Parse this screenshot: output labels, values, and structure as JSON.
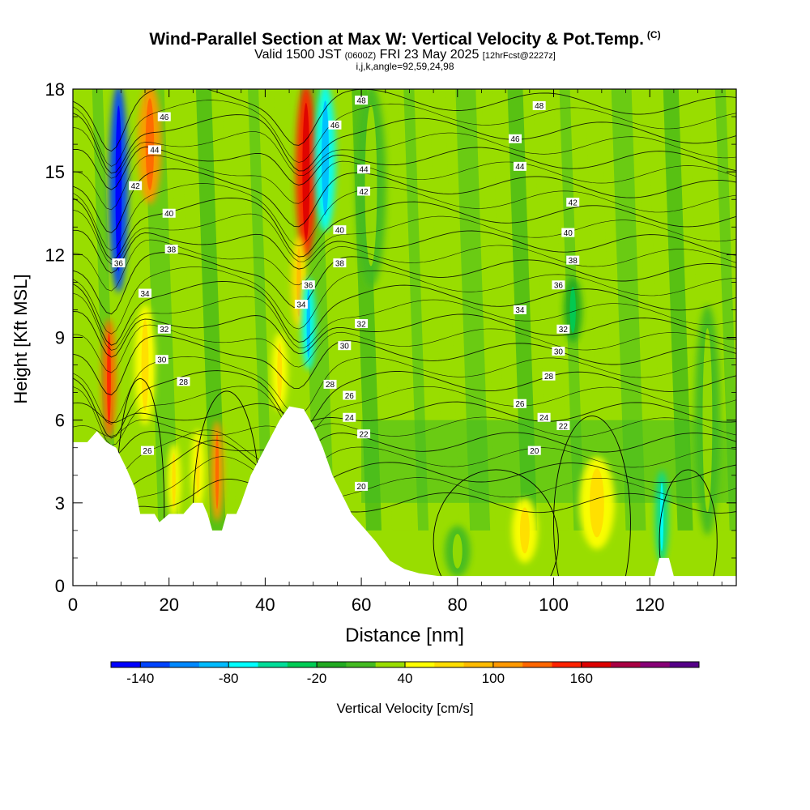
{
  "header": {
    "title": "Wind-Parallel Section at Max W: Vertical Velocity & Pot.Temp.",
    "copyright": "(C)",
    "valid_main": "Valid 1500 JST",
    "valid_z": "(0600Z)",
    "valid_date": "FRI 23 May 2025",
    "valid_fcst": "[12hrFcst@2227z]",
    "indices": "i,j,k,angle=92,59,24,98"
  },
  "chart_data": {
    "type": "heatmap",
    "title": "Wind-Parallel Section at Max W: Vertical Velocity & Pot.Temp.",
    "xlabel": "Distance [nm]",
    "ylabel": "Height [Kft MSL]",
    "xlim": [
      0,
      138
    ],
    "ylim": [
      0,
      18
    ],
    "x_ticks": [
      0,
      20,
      40,
      60,
      80,
      100,
      120
    ],
    "y_ticks": [
      0,
      3,
      6,
      9,
      12,
      15,
      18
    ],
    "grid": false,
    "colorbar": {
      "label": "Vertical Velocity [cm/s]",
      "tick_labels": [
        -140,
        -80,
        -20,
        40,
        100,
        160
      ],
      "bins": [
        {
          "min": -160,
          "max": -140,
          "color": "#0000ff"
        },
        {
          "min": -140,
          "max": -120,
          "color": "#0044ff"
        },
        {
          "min": -120,
          "max": -100,
          "color": "#0088ff"
        },
        {
          "min": -100,
          "max": -80,
          "color": "#00bbff"
        },
        {
          "min": -80,
          "max": -60,
          "color": "#00ffff"
        },
        {
          "min": -60,
          "max": -40,
          "color": "#00dd99"
        },
        {
          "min": -40,
          "max": -20,
          "color": "#00cc55"
        },
        {
          "min": -20,
          "max": 0,
          "color": "#22aa22"
        },
        {
          "min": 0,
          "max": 20,
          "color": "#44bb22"
        },
        {
          "min": 20,
          "max": 40,
          "color": "#99dd00"
        },
        {
          "min": 40,
          "max": 60,
          "color": "#ffff00"
        },
        {
          "min": 60,
          "max": 80,
          "color": "#ffdd00"
        },
        {
          "min": 80,
          "max": 100,
          "color": "#ffbb00"
        },
        {
          "min": 100,
          "max": 120,
          "color": "#ff9900"
        },
        {
          "min": 120,
          "max": 140,
          "color": "#ff6600"
        },
        {
          "min": 140,
          "max": 160,
          "color": "#ff2200"
        },
        {
          "min": 160,
          "max": 180,
          "color": "#dd0000"
        },
        {
          "min": 180,
          "max": 200,
          "color": "#aa0044"
        },
        {
          "min": 200,
          "max": 220,
          "color": "#880077"
        },
        {
          "min": 220,
          "max": 240,
          "color": "#550088"
        }
      ]
    },
    "terrain": [
      [
        0,
        5.2
      ],
      [
        3,
        5.2
      ],
      [
        5,
        5.6
      ],
      [
        7,
        5.2
      ],
      [
        9,
        5.0
      ],
      [
        11,
        4.3
      ],
      [
        13,
        3.5
      ],
      [
        14,
        2.6
      ],
      [
        17,
        2.6
      ],
      [
        18,
        2.3
      ],
      [
        20,
        2.6
      ],
      [
        23,
        2.6
      ],
      [
        25,
        3.0
      ],
      [
        27,
        3.0
      ],
      [
        28,
        2.6
      ],
      [
        29,
        2.0
      ],
      [
        31,
        2.0
      ],
      [
        32,
        2.6
      ],
      [
        34,
        2.6
      ],
      [
        35,
        3.0
      ],
      [
        37,
        4.0
      ],
      [
        40,
        5.0
      ],
      [
        43,
        6.0
      ],
      [
        45,
        6.5
      ],
      [
        48,
        6.4
      ],
      [
        50,
        5.8
      ],
      [
        52,
        5.0
      ],
      [
        54,
        4.0
      ],
      [
        56,
        3.3
      ],
      [
        58,
        2.6
      ],
      [
        60,
        2.2
      ],
      [
        63,
        1.6
      ],
      [
        66,
        0.9
      ],
      [
        69,
        0.6
      ],
      [
        72,
        0.45
      ],
      [
        76,
        0.35
      ],
      [
        100,
        0.35
      ],
      [
        121,
        0.35
      ],
      [
        122,
        1.0
      ],
      [
        124,
        1.0
      ],
      [
        125,
        0.35
      ],
      [
        138,
        0.35
      ]
    ],
    "velocity_features": [
      {
        "x": 9.5,
        "width": 2.6,
        "y_min": 10.8,
        "y_max": 18,
        "value": -140
      },
      {
        "x": 7.5,
        "width": 1.6,
        "y_min": 5.5,
        "y_max": 9.5,
        "value": 130
      },
      {
        "x": 16,
        "width": 3.5,
        "y_min": 14,
        "y_max": 18,
        "value": 110
      },
      {
        "x": 15,
        "width": 3,
        "y_min": 6,
        "y_max": 10,
        "value": 45
      },
      {
        "x": 30,
        "width": 1.4,
        "y_min": 2.5,
        "y_max": 5.8,
        "value": 110
      },
      {
        "x": 21,
        "width": 1.5,
        "y_min": 2.6,
        "y_max": 5.0,
        "value": 45
      },
      {
        "x": 26,
        "width": 1.5,
        "y_min": 3.0,
        "y_max": 5.5,
        "value": 45
      },
      {
        "x": 48.5,
        "width": 3,
        "y_min": 12,
        "y_max": 18,
        "value": 150
      },
      {
        "x": 47,
        "width": 1.8,
        "y_min": 9.5,
        "y_max": 12.5,
        "value": 60
      },
      {
        "x": 52.5,
        "width": 3,
        "y_min": 13,
        "y_max": 18,
        "value": -80
      },
      {
        "x": 49,
        "width": 1.5,
        "y_min": 8,
        "y_max": 11,
        "value": -80
      },
      {
        "x": 43,
        "width": 2,
        "y_min": 6.5,
        "y_max": 9,
        "value": 45
      },
      {
        "x": 109,
        "width": 6,
        "y_min": 1.5,
        "y_max": 4.5,
        "value": 50
      },
      {
        "x": 94,
        "width": 4,
        "y_min": 1.0,
        "y_max": 3.0,
        "value": 45
      },
      {
        "x": 80,
        "width": 4,
        "y_min": 0.5,
        "y_max": 2.0,
        "value": 10
      },
      {
        "x": 122.5,
        "width": 1.4,
        "y_min": 1.0,
        "y_max": 4.0,
        "value": -50
      },
      {
        "x": 104,
        "width": 2.5,
        "y_min": 9,
        "y_max": 11,
        "value": -10
      },
      {
        "x": 62,
        "width": 5,
        "y_min": 11,
        "y_max": 18,
        "value": 10
      },
      {
        "x": 132,
        "width": 4,
        "y_min": 2,
        "y_max": 10,
        "value": 15
      }
    ],
    "potential_temperature": {
      "contour_values": [
        20,
        22,
        24,
        26,
        28,
        30,
        32,
        34,
        36,
        38,
        40,
        42,
        44,
        46,
        48
      ],
      "labels": [
        {
          "text": "48",
          "x": 97,
          "y": 17.4
        },
        {
          "text": "46",
          "x": 92,
          "y": 16.2
        },
        {
          "text": "44",
          "x": 93,
          "y": 15.2
        },
        {
          "text": "42",
          "x": 104,
          "y": 13.9
        },
        {
          "text": "40",
          "x": 103,
          "y": 12.8
        },
        {
          "text": "38",
          "x": 104,
          "y": 11.8
        },
        {
          "text": "36",
          "x": 101,
          "y": 10.9
        },
        {
          "text": "34",
          "x": 93,
          "y": 10.0
        },
        {
          "text": "32",
          "x": 102,
          "y": 9.3
        },
        {
          "text": "30",
          "x": 101,
          "y": 8.5
        },
        {
          "text": "28",
          "x": 99,
          "y": 7.6
        },
        {
          "text": "26",
          "x": 93,
          "y": 6.6
        },
        {
          "text": "24",
          "x": 98,
          "y": 6.1
        },
        {
          "text": "22",
          "x": 102,
          "y": 5.8
        },
        {
          "text": "20",
          "x": 96,
          "y": 4.9
        },
        {
          "text": "46",
          "x": 19,
          "y": 17.0
        },
        {
          "text": "44",
          "x": 17,
          "y": 15.8
        },
        {
          "text": "42",
          "x": 13,
          "y": 14.5
        },
        {
          "text": "40",
          "x": 20,
          "y": 13.5
        },
        {
          "text": "38",
          "x": 20.5,
          "y": 12.2
        },
        {
          "text": "36",
          "x": 9.5,
          "y": 11.7
        },
        {
          "text": "34",
          "x": 15,
          "y": 10.6
        },
        {
          "text": "32",
          "x": 19,
          "y": 9.3
        },
        {
          "text": "30",
          "x": 18.5,
          "y": 8.2
        },
        {
          "text": "28",
          "x": 23,
          "y": 7.4
        },
        {
          "text": "26",
          "x": 15.5,
          "y": 4.9
        },
        {
          "text": "48",
          "x": 60,
          "y": 17.6
        },
        {
          "text": "46",
          "x": 54.5,
          "y": 16.7
        },
        {
          "text": "44",
          "x": 60.5,
          "y": 15.1
        },
        {
          "text": "42",
          "x": 60.5,
          "y": 14.3
        },
        {
          "text": "40",
          "x": 55.5,
          "y": 12.9
        },
        {
          "text": "38",
          "x": 55.5,
          "y": 11.7
        },
        {
          "text": "36",
          "x": 49,
          "y": 10.9
        },
        {
          "text": "34",
          "x": 47.5,
          "y": 10.2
        },
        {
          "text": "32",
          "x": 60,
          "y": 9.5
        },
        {
          "text": "30",
          "x": 56.5,
          "y": 8.7
        },
        {
          "text": "28",
          "x": 53.5,
          "y": 7.3
        },
        {
          "text": "26",
          "x": 57.5,
          "y": 6.9
        },
        {
          "text": "24",
          "x": 57.5,
          "y": 6.1
        },
        {
          "text": "22",
          "x": 60.5,
          "y": 5.5
        },
        {
          "text": "20",
          "x": 60,
          "y": 3.6
        }
      ]
    }
  }
}
